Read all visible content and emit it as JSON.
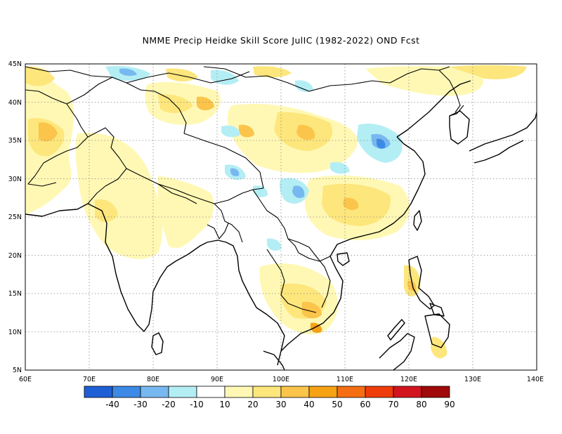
{
  "title": "NMME Precip Heidke Skill Score JulIC (1982-2022) OND Fcst",
  "map": {
    "lon_range": [
      60,
      140
    ],
    "lat_range": [
      5,
      45
    ],
    "lon_ticks": [
      "60E",
      "70E",
      "80E",
      "90E",
      "100E",
      "110E",
      "120E",
      "130E",
      "140E"
    ],
    "lat_ticks": [
      "5N",
      "10N",
      "15N",
      "20N",
      "25N",
      "30N",
      "35N",
      "40N",
      "45N"
    ],
    "grid": "dotted",
    "field": "Heidke Skill Score"
  },
  "colorbar": {
    "labels": [
      "-40",
      "-30",
      "-20",
      "-10",
      "10",
      "20",
      "30",
      "40",
      "50",
      "60",
      "70",
      "80",
      "90"
    ],
    "colors": [
      "#1e5fd6",
      "#3c8ae6",
      "#78b8f0",
      "#b4eef5",
      "#ffffff",
      "#fff8b4",
      "#fde67c",
      "#fbc44a",
      "#f7a214",
      "#f56e14",
      "#f03c0a",
      "#d2141e",
      "#a00a0a"
    ]
  }
}
